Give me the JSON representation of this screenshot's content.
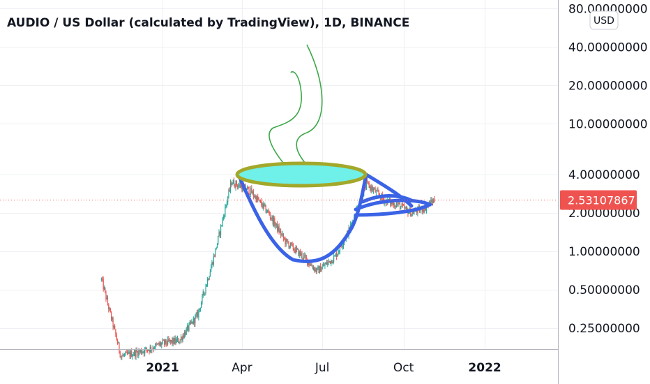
{
  "chart_data": {
    "type": "candlestick",
    "title": "AUDIO / US Dollar (calculated by TradingView), 1D, BINANCE",
    "currency": "USD",
    "y_scale": "log",
    "y_ticks": [
      "80.00000000",
      "40.00000000",
      "20.00000000",
      "10.00000000",
      "4.00000000",
      "2.00000000",
      "1.00000000",
      "0.50000000",
      "0.25000000"
    ],
    "y_tick_values": [
      80,
      40,
      20,
      10,
      4,
      2,
      1,
      0.5,
      0.25
    ],
    "x_ticks": [
      {
        "label": "2021",
        "date": "2021-01-01",
        "bold": true
      },
      {
        "label": "Apr",
        "date": "2021-04-01",
        "bold": false
      },
      {
        "label": "Jul",
        "date": "2021-07-01",
        "bold": false
      },
      {
        "label": "Oct",
        "date": "2021-10-01",
        "bold": false
      },
      {
        "label": "2022",
        "date": "2022-01-01",
        "bold": true
      }
    ],
    "last_price": "2.53107867",
    "last_price_value": 2.53107867,
    "colors": {
      "up": "#26a69a",
      "down": "#ef5350",
      "price_line": "#ef5350",
      "drawing_blue": "#3a63e6",
      "cup_fill": "#6ff0e8",
      "cup_rim": "#a3a82a",
      "steam": "#3ea84a",
      "grid": "#eef0f3"
    },
    "series": [
      {
        "date": "2020-10-24",
        "value": 0.6
      },
      {
        "date": "2020-11-15",
        "value": 0.15
      },
      {
        "date": "2020-12-15",
        "value": 0.17
      },
      {
        "date": "2021-01-01",
        "value": 0.19
      },
      {
        "date": "2021-01-20",
        "value": 0.2
      },
      {
        "date": "2021-02-10",
        "value": 0.32
      },
      {
        "date": "2021-03-01",
        "value": 0.95
      },
      {
        "date": "2021-03-20",
        "value": 3.5
      },
      {
        "date": "2021-04-10",
        "value": 3.0
      },
      {
        "date": "2021-05-01",
        "value": 2.0
      },
      {
        "date": "2021-05-20",
        "value": 1.2
      },
      {
        "date": "2021-06-10",
        "value": 0.9
      },
      {
        "date": "2021-06-25",
        "value": 0.7
      },
      {
        "date": "2021-07-15",
        "value": 0.9
      },
      {
        "date": "2021-08-01",
        "value": 1.5
      },
      {
        "date": "2021-08-20",
        "value": 3.4
      },
      {
        "date": "2021-09-10",
        "value": 2.5
      },
      {
        "date": "2021-09-25",
        "value": 2.3
      },
      {
        "date": "2021-10-10",
        "value": 2.0
      },
      {
        "date": "2021-10-25",
        "value": 2.2
      },
      {
        "date": "2021-11-05",
        "value": 2.53
      }
    ]
  }
}
